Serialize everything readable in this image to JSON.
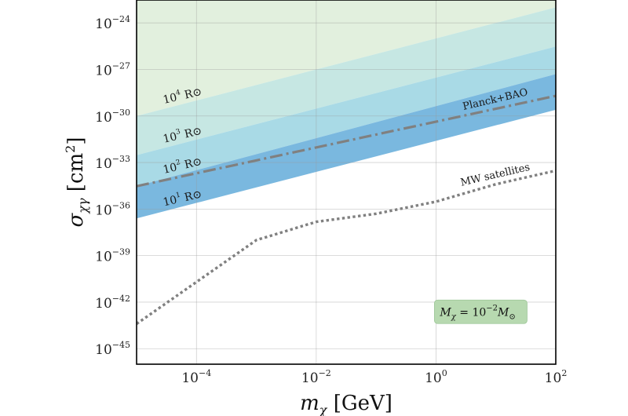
{
  "chart_data": {
    "type": "area",
    "xscale": "log",
    "yscale": "log",
    "xlim": [
      1e-05,
      100
    ],
    "ylim": [
      1e-46,
      3e-23
    ],
    "grid": true,
    "xlabel": {
      "base": "m",
      "sub": "χ",
      "rest": " [GeV]"
    },
    "ylabel": {
      "base": "σ",
      "sub": "χγ",
      "rest": " [cm",
      "sup": "2",
      "end": "]"
    },
    "x_ticks": [
      {
        "value": 0.0001,
        "base": "10",
        "exp": "−4"
      },
      {
        "value": 0.01,
        "base": "10",
        "exp": "−2"
      },
      {
        "value": 1,
        "base": "10",
        "exp": "0"
      },
      {
        "value": 100,
        "base": "10",
        "exp": "2"
      }
    ],
    "y_ticks": [
      {
        "value": 1e-24,
        "base": "10",
        "exp": "−24"
      },
      {
        "value": 1e-27,
        "base": "10",
        "exp": "−27"
      },
      {
        "value": 1e-30,
        "base": "10",
        "exp": "−30"
      },
      {
        "value": 1e-33,
        "base": "10",
        "exp": "−33"
      },
      {
        "value": 1e-36,
        "base": "10",
        "exp": "−36"
      },
      {
        "value": 1e-39,
        "base": "10",
        "exp": "−39"
      },
      {
        "value": 1e-42,
        "base": "10",
        "exp": "−42"
      },
      {
        "value": 1e-45,
        "base": "10",
        "exp": "−45"
      }
    ],
    "bands": [
      {
        "name": "10^4 R⊙",
        "label_base": "10",
        "label_exp": "4",
        "label_unit": "R⊙",
        "color": "#e2f0de",
        "lower": [
          {
            "x": 1e-05,
            "y": 1e-30
          },
          {
            "x": 100,
            "y": 1e-23
          }
        ],
        "upper": [
          {
            "x": 1e-05,
            "y": 3e-23
          },
          {
            "x": 100,
            "y": 3e-23
          }
        ]
      },
      {
        "name": "10^3 R⊙",
        "label_base": "10",
        "label_exp": "3",
        "label_unit": "R⊙",
        "color": "#c6e7e3",
        "lower": [
          {
            "x": 1e-05,
            "y": 3e-33
          },
          {
            "x": 100,
            "y": 3e-26
          }
        ],
        "upper": [
          {
            "x": 1e-05,
            "y": 1e-30
          },
          {
            "x": 100,
            "y": 1e-23
          }
        ]
      },
      {
        "name": "10^2 R⊙",
        "label_base": "10",
        "label_exp": "2",
        "label_unit": "R⊙",
        "color": "#a9dae6",
        "lower": [
          {
            "x": 1e-05,
            "y": 3e-35
          },
          {
            "x": 100,
            "y": 5e-28
          }
        ],
        "upper": [
          {
            "x": 1e-05,
            "y": 3e-33
          },
          {
            "x": 100,
            "y": 3e-26
          }
        ]
      },
      {
        "name": "10^1 R⊙",
        "label_base": "10",
        "label_exp": "1",
        "label_unit": "R⊙",
        "color": "#7ab8df",
        "lower": [
          {
            "x": 1e-05,
            "y": 2.5e-37
          },
          {
            "x": 100,
            "y": 2.5e-30
          }
        ],
        "upper": [
          {
            "x": 1e-05,
            "y": 3e-35
          },
          {
            "x": 100,
            "y": 5e-28
          }
        ]
      }
    ],
    "series": [
      {
        "name": "Planck+BAO",
        "style": "dashdot",
        "color": "#808080",
        "points": [
          {
            "x": 1e-05,
            "y": 3e-35
          },
          {
            "x": 100,
            "y": 2e-29
          }
        ]
      },
      {
        "name": "MW satellites",
        "style": "dotted",
        "color": "#808080",
        "points": [
          {
            "x": 1e-05,
            "y": 4e-44
          },
          {
            "x": 0.001,
            "y": 1e-38
          },
          {
            "x": 0.01,
            "y": 1.5e-37
          },
          {
            "x": 0.1,
            "y": 5e-37
          },
          {
            "x": 1,
            "y": 3e-36
          },
          {
            "x": 10,
            "y": 4e-35
          },
          {
            "x": 100,
            "y": 3e-34
          }
        ]
      }
    ],
    "annotation": {
      "lhs_base": "M",
      "lhs_sub": "χ",
      "eq": " = 10",
      "exp": "−2",
      "rhs_base": "M",
      "rhs_sub": "⊙",
      "box_color": "#b7d9b0"
    }
  }
}
